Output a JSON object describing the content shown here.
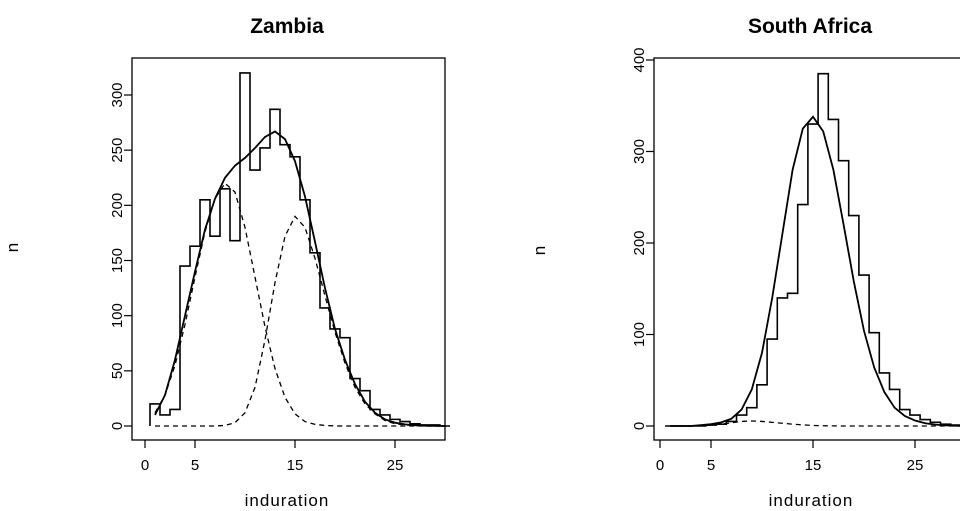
{
  "chart_data": [
    {
      "type": "histogram",
      "title": "Zambia",
      "xlabel": "induration",
      "ylabel": "n",
      "xlim": [
        0,
        31
      ],
      "ylim": [
        0,
        330
      ],
      "xticks": [
        0,
        5,
        15,
        25
      ],
      "yticks": [
        0,
        50,
        100,
        150,
        200,
        250,
        300
      ],
      "x_tick_labels": [
        "0",
        "5",
        "15",
        "25"
      ],
      "y_tick_labels": [
        "0",
        "50",
        "100",
        "150",
        "200",
        "250",
        "300"
      ],
      "bins": {
        "start": 0.5,
        "width": 1,
        "values": [
          20,
          10,
          15,
          145,
          163,
          205,
          172,
          215,
          168,
          320,
          232,
          252,
          287,
          255,
          244,
          205,
          157,
          107,
          88,
          80,
          43,
          32,
          15,
          10,
          6,
          4,
          2,
          1,
          1,
          0
        ]
      },
      "series": [
        {
          "name": "",
          "style": "solid",
          "x": [
            1,
            2,
            3,
            4,
            5,
            6,
            7,
            8,
            9,
            10,
            11,
            12,
            13,
            14,
            15,
            16,
            17,
            18,
            19,
            20,
            21,
            22,
            23,
            24,
            25,
            26,
            27,
            28,
            29,
            30
          ],
          "values": [
            10,
            28,
            60,
            100,
            140,
            178,
            206,
            225,
            236,
            243,
            252,
            262,
            267,
            260,
            240,
            208,
            167,
            125,
            88,
            60,
            38,
            22,
            12,
            6,
            3,
            1.5,
            0.7,
            0.3,
            0.1,
            0
          ]
        },
        {
          "name": "",
          "style": "dashed",
          "x": [
            1,
            2,
            3,
            4,
            5,
            6,
            7,
            8,
            9,
            10,
            11,
            12,
            13,
            14,
            15,
            16,
            17,
            18,
            19,
            20,
            21,
            22,
            23,
            24,
            25,
            26,
            27,
            28,
            29,
            30
          ],
          "values": [
            12,
            28,
            55,
            92,
            135,
            176,
            206,
            220,
            212,
            180,
            135,
            90,
            52,
            26,
            11,
            4,
            1.5,
            0.5,
            0.1,
            0,
            0,
            0,
            0,
            0,
            0,
            0,
            0,
            0,
            0,
            0
          ]
        },
        {
          "name": "",
          "style": "dashed",
          "x": [
            1,
            2,
            3,
            4,
            5,
            6,
            7,
            8,
            9,
            10,
            11,
            12,
            13,
            14,
            15,
            16,
            17,
            18,
            19,
            20,
            21,
            22,
            23,
            24,
            25,
            26,
            27,
            28,
            29,
            30
          ],
          "values": [
            0,
            0,
            0,
            0,
            0,
            0,
            0,
            0.5,
            3,
            12,
            35,
            78,
            130,
            172,
            190,
            180,
            152,
            118,
            85,
            57,
            35,
            20,
            11,
            5,
            2,
            1,
            0.4,
            0.1,
            0,
            0
          ]
        }
      ]
    },
    {
      "type": "histogram",
      "title": "South Africa",
      "xlabel": "induration",
      "ylabel": "n",
      "xlim": [
        0,
        31
      ],
      "ylim": [
        0,
        400
      ],
      "xticks": [
        0,
        5,
        15,
        25
      ],
      "yticks": [
        0,
        100,
        200,
        300,
        400
      ],
      "x_tick_labels": [
        "0",
        "5",
        "15",
        "25"
      ],
      "y_tick_labels": [
        "0",
        "100",
        "200",
        "300",
        "400"
      ],
      "bins": {
        "start": 0.5,
        "width": 1,
        "values": [
          0,
          0,
          0,
          0,
          1,
          2,
          5,
          12,
          20,
          45,
          95,
          140,
          145,
          242,
          330,
          385,
          335,
          290,
          230,
          165,
          102,
          58,
          40,
          18,
          12,
          7,
          4,
          2,
          1,
          0
        ]
      },
      "series": [
        {
          "name": "",
          "style": "solid",
          "x": [
            1,
            2,
            3,
            4,
            5,
            6,
            7,
            8,
            9,
            10,
            11,
            12,
            13,
            14,
            15,
            16,
            17,
            18,
            19,
            20,
            21,
            22,
            23,
            24,
            25,
            26,
            27,
            28,
            29,
            30
          ],
          "values": [
            0,
            0,
            0,
            1,
            2,
            4,
            8,
            18,
            40,
            80,
            140,
            210,
            280,
            325,
            338,
            322,
            280,
            220,
            158,
            104,
            64,
            37,
            20,
            11,
            6,
            3,
            1.5,
            0.7,
            0.3,
            0
          ]
        },
        {
          "name": "",
          "style": "dashed",
          "x": [
            1,
            2,
            3,
            4,
            5,
            6,
            7,
            8,
            9,
            10,
            11,
            12,
            13,
            14,
            15,
            16,
            17,
            18,
            19,
            20,
            21,
            22,
            23,
            24,
            25,
            26,
            27,
            28,
            29,
            30
          ],
          "values": [
            0,
            0,
            0,
            0.3,
            1,
            2,
            3.5,
            5,
            5.5,
            5,
            4,
            3,
            2,
            1.2,
            0.6,
            0.3,
            0.1,
            0,
            0,
            0,
            0,
            0,
            0,
            0,
            0,
            0,
            0,
            0,
            0,
            0
          ]
        }
      ]
    }
  ]
}
